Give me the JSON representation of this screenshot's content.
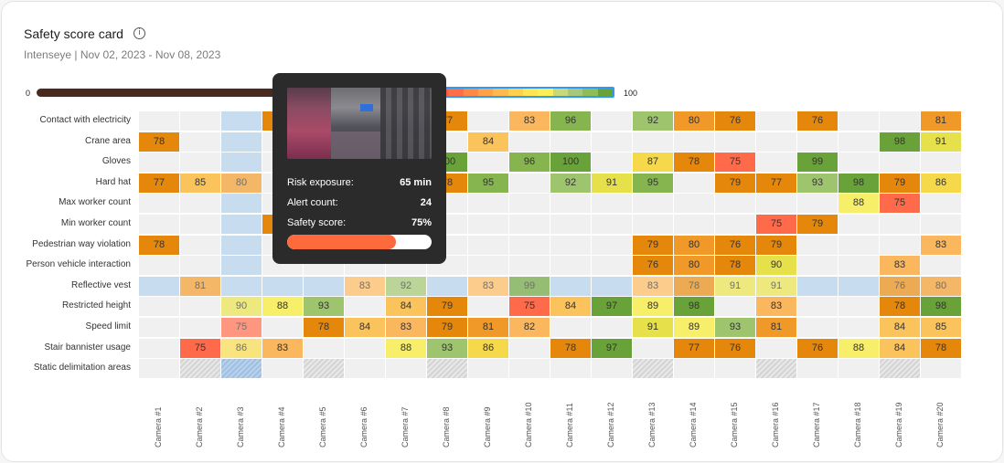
{
  "card": {
    "title": "Safety score card",
    "info_icon": "info-circle-icon",
    "subtitle": "Intenseye | Nov 02, 2023 - Nov 08, 2023"
  },
  "scale": {
    "min_label": "0",
    "max_label": "100",
    "legend_colors": [
      "#ff5b4a",
      "#ff6f47",
      "#ff8a45",
      "#ffa24a",
      "#ffb94f",
      "#ffd04d",
      "#ffe454",
      "#fbee59",
      "#c8d87a",
      "#a8c77a",
      "#8fbd55",
      "#6aa23a"
    ]
  },
  "colors": {
    "empty": "#f0f0f0",
    "row_highlight": "#c8dcef",
    "col_highlight": "#c8dcef",
    "tooltip_bg": "#2b2b2b",
    "tooltip_bar": "#ff6a3d"
  },
  "tooltip": {
    "image": "camera-snapshot",
    "rows": [
      {
        "label": "Risk exposure:",
        "value": "65 min"
      },
      {
        "label": "Alert count:",
        "value": "24"
      },
      {
        "label": "Safety score:",
        "value": "75%"
      }
    ],
    "safety_score": 75
  },
  "chart_data": {
    "type": "heatmap",
    "title": "Safety score card",
    "subtitle": "Intenseye | Nov 02, 2023 - Nov 08, 2023",
    "value_range": [
      0,
      100
    ],
    "highlighted_row": "Reflective vest",
    "highlighted_column": "Camera #3",
    "rows": [
      "Contact with electricity",
      "Crane area",
      "Gloves",
      "Hard hat",
      "Max worker count",
      "Min worker count",
      "Pedestrian way violation",
      "Person vehicle interaction",
      "Reflective vest",
      "Restricted height",
      "Speed limit",
      "Stair bannister usage",
      "Static delimitation areas"
    ],
    "columns": [
      "Camera #1",
      "Camera #2",
      "Camera #3",
      "Camera #4",
      "Camera #5",
      "Camera #6",
      "Camera #7",
      "Camera #8",
      "Camera #9",
      "Camera #10",
      "Camera #11",
      "Camera #12",
      "Camera #13",
      "Camera #14",
      "Camera #15",
      "Camera #16",
      "Camera #17",
      "Camera #18",
      "Camera #19",
      "Camera #20"
    ],
    "values": [
      [
        null,
        null,
        null,
        76,
        null,
        null,
        null,
        77,
        null,
        83,
        96,
        null,
        92,
        80,
        76,
        null,
        76,
        null,
        null,
        81
      ],
      [
        78,
        null,
        null,
        null,
        null,
        null,
        null,
        null,
        84,
        null,
        null,
        null,
        null,
        null,
        null,
        null,
        null,
        null,
        98,
        91
      ],
      [
        null,
        null,
        null,
        null,
        99,
        97,
        null,
        100,
        null,
        96,
        100,
        null,
        87,
        78,
        75,
        null,
        99,
        null,
        null,
        null
      ],
      [
        77,
        85,
        80,
        null,
        null,
        null,
        null,
        78,
        95,
        null,
        92,
        91,
        95,
        null,
        79,
        77,
        93,
        98,
        79,
        86
      ],
      [
        null,
        null,
        null,
        null,
        null,
        null,
        null,
        null,
        null,
        null,
        null,
        null,
        null,
        null,
        null,
        null,
        null,
        88,
        75,
        null
      ],
      [
        null,
        null,
        null,
        78,
        null,
        92,
        99,
        null,
        null,
        null,
        null,
        null,
        null,
        null,
        null,
        75,
        79,
        null,
        null,
        null
      ],
      [
        78,
        null,
        null,
        null,
        null,
        null,
        null,
        null,
        null,
        null,
        null,
        null,
        79,
        80,
        76,
        79,
        null,
        null,
        null,
        83
      ],
      [
        null,
        null,
        null,
        null,
        null,
        null,
        null,
        null,
        null,
        null,
        null,
        null,
        76,
        80,
        78,
        90,
        null,
        null,
        83,
        null
      ],
      [
        null,
        81,
        null,
        null,
        null,
        83,
        92,
        null,
        83,
        99,
        null,
        null,
        83,
        78,
        91,
        91,
        null,
        null,
        76,
        80
      ],
      [
        null,
        null,
        90,
        88,
        93,
        null,
        84,
        79,
        null,
        75,
        84,
        97,
        89,
        98,
        null,
        83,
        null,
        null,
        78,
        98
      ],
      [
        null,
        null,
        75,
        null,
        78,
        84,
        83,
        79,
        81,
        82,
        null,
        null,
        91,
        89,
        93,
        81,
        null,
        null,
        84,
        85
      ],
      [
        null,
        75,
        86,
        83,
        null,
        null,
        88,
        93,
        86,
        null,
        78,
        97,
        null,
        77,
        76,
        null,
        76,
        88,
        84,
        78
      ],
      [
        null,
        "hatched",
        "hatched",
        null,
        "hatched",
        null,
        null,
        "hatched",
        null,
        null,
        null,
        null,
        "hatched",
        null,
        null,
        "hatched",
        null,
        null,
        "hatched",
        null
      ]
    ],
    "hidden_under_tooltip": [
      [
        3,
        3
      ],
      [
        2,
        4
      ],
      [
        2,
        5
      ],
      [
        5,
        3
      ],
      [
        5,
        5
      ],
      [
        5,
        6
      ]
    ]
  }
}
